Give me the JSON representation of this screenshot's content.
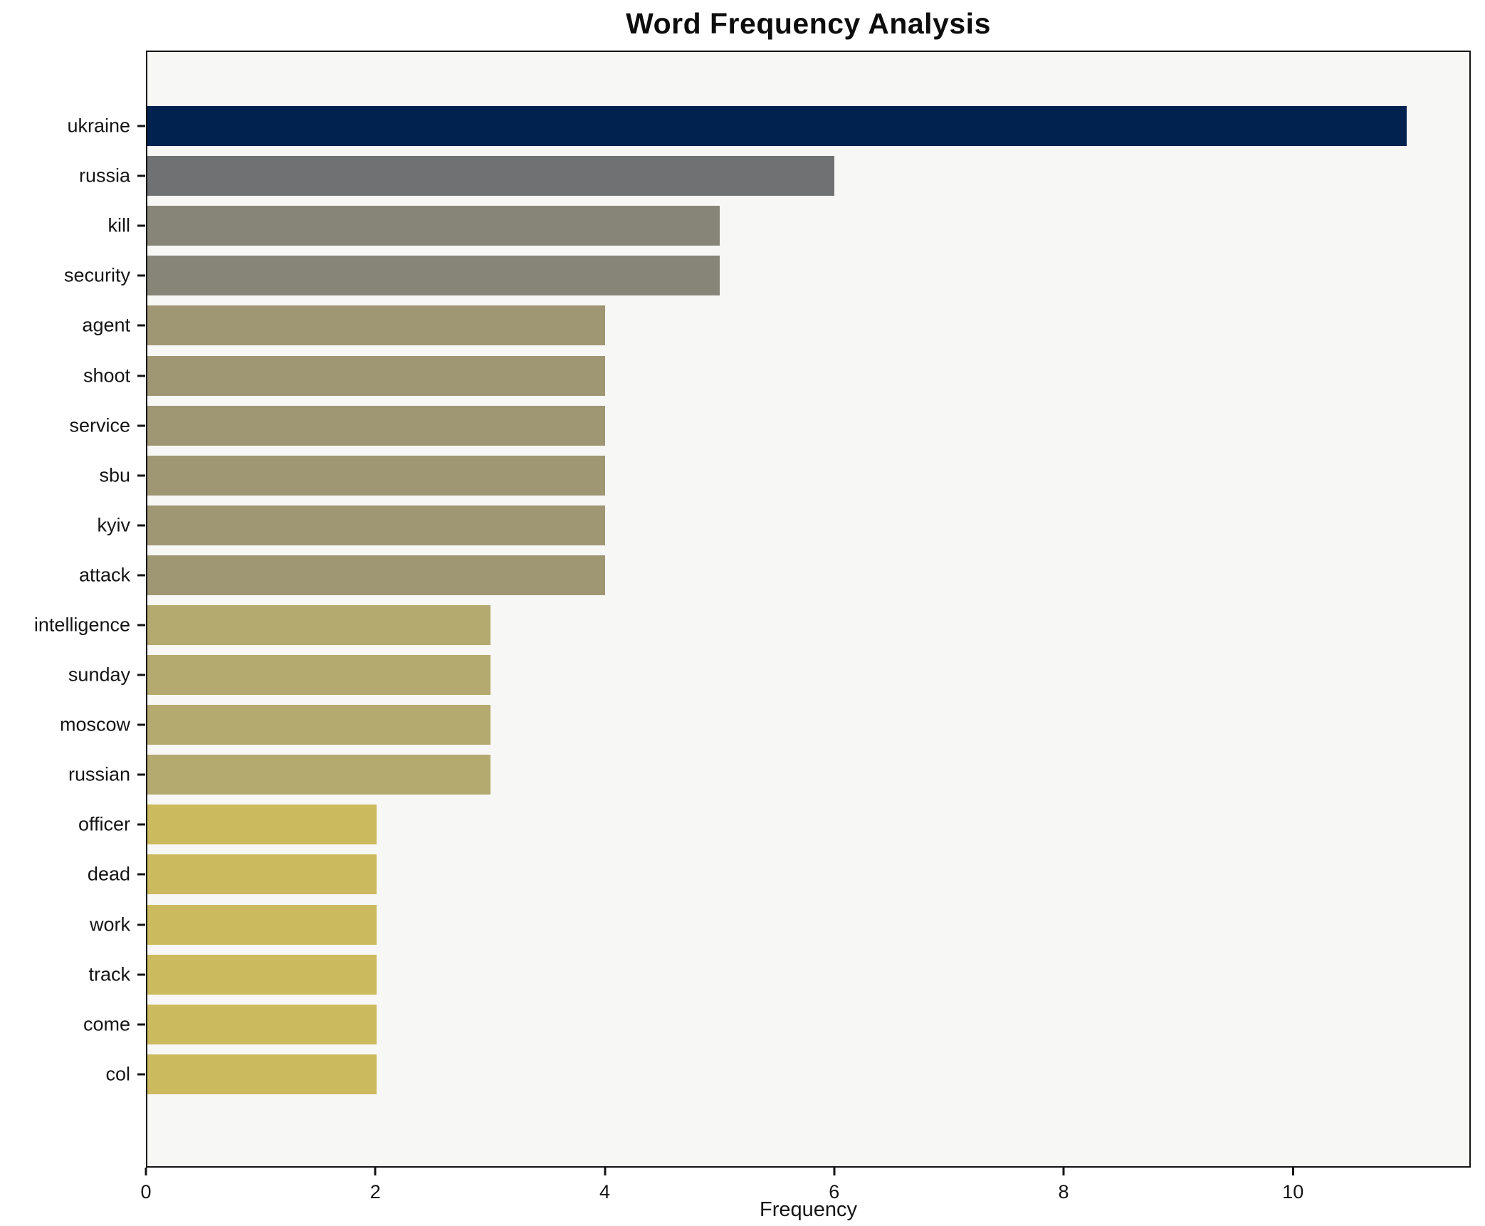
{
  "chart_data": {
    "type": "bar",
    "orientation": "horizontal",
    "title": "Word Frequency Analysis",
    "xlabel": "Frequency",
    "ylabel": "",
    "grid": false,
    "legend_position": "none",
    "plot_background": "#f7f7f5",
    "spine_color": "#141414",
    "xlim": [
      0,
      11.55
    ],
    "xticks": [
      0,
      2,
      4,
      6,
      8,
      10
    ],
    "categories": [
      "ukraine",
      "russia",
      "kill",
      "security",
      "agent",
      "shoot",
      "service",
      "sbu",
      "kyiv",
      "attack",
      "intelligence",
      "sunday",
      "moscow",
      "russian",
      "officer",
      "dead",
      "work",
      "track",
      "come",
      "col"
    ],
    "values": [
      11,
      6,
      5,
      5,
      4,
      4,
      4,
      4,
      4,
      4,
      3,
      3,
      3,
      3,
      2,
      2,
      2,
      2,
      2,
      2
    ],
    "bar_colors": [
      "#01224e",
      "#707173",
      "#878577",
      "#878577",
      "#9f9674",
      "#9f9674",
      "#9f9674",
      "#9f9674",
      "#9f9674",
      "#9f9674",
      "#b4a96e",
      "#b4a96e",
      "#b4a96e",
      "#b4a96e",
      "#ccba5e",
      "#ccba5e",
      "#ccba5e",
      "#ccba5e",
      "#ccba5e",
      "#ccba5e"
    ]
  }
}
